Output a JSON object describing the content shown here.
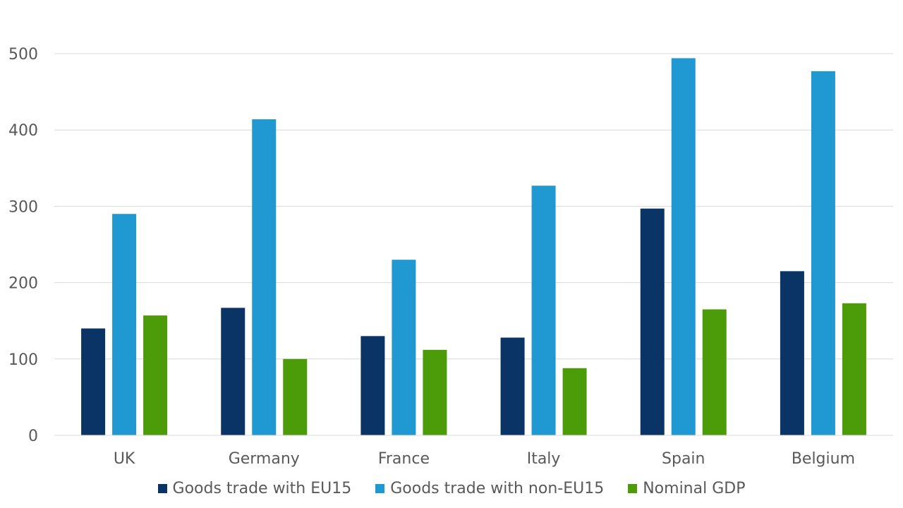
{
  "chart_data": {
    "type": "bar",
    "categories": [
      "UK",
      "Germany",
      "France",
      "Italy",
      "Spain",
      "Belgium"
    ],
    "series": [
      {
        "name": "Goods trade with EU15",
        "color": "#0b3466",
        "values": [
          140,
          167,
          130,
          128,
          297,
          215
        ]
      },
      {
        "name": "Goods trade with non-EU15",
        "color": "#2098d1",
        "values": [
          290,
          414,
          230,
          327,
          494,
          477
        ]
      },
      {
        "name": "Nominal GDP",
        "color": "#4c9c0a",
        "values": [
          157,
          100,
          112,
          88,
          165,
          173
        ]
      }
    ],
    "ylim": [
      0,
      500
    ],
    "yticks": [
      0,
      100,
      200,
      300,
      400,
      500
    ],
    "grid": true,
    "legend_position": "bottom",
    "title": "",
    "xlabel": "",
    "ylabel": ""
  }
}
